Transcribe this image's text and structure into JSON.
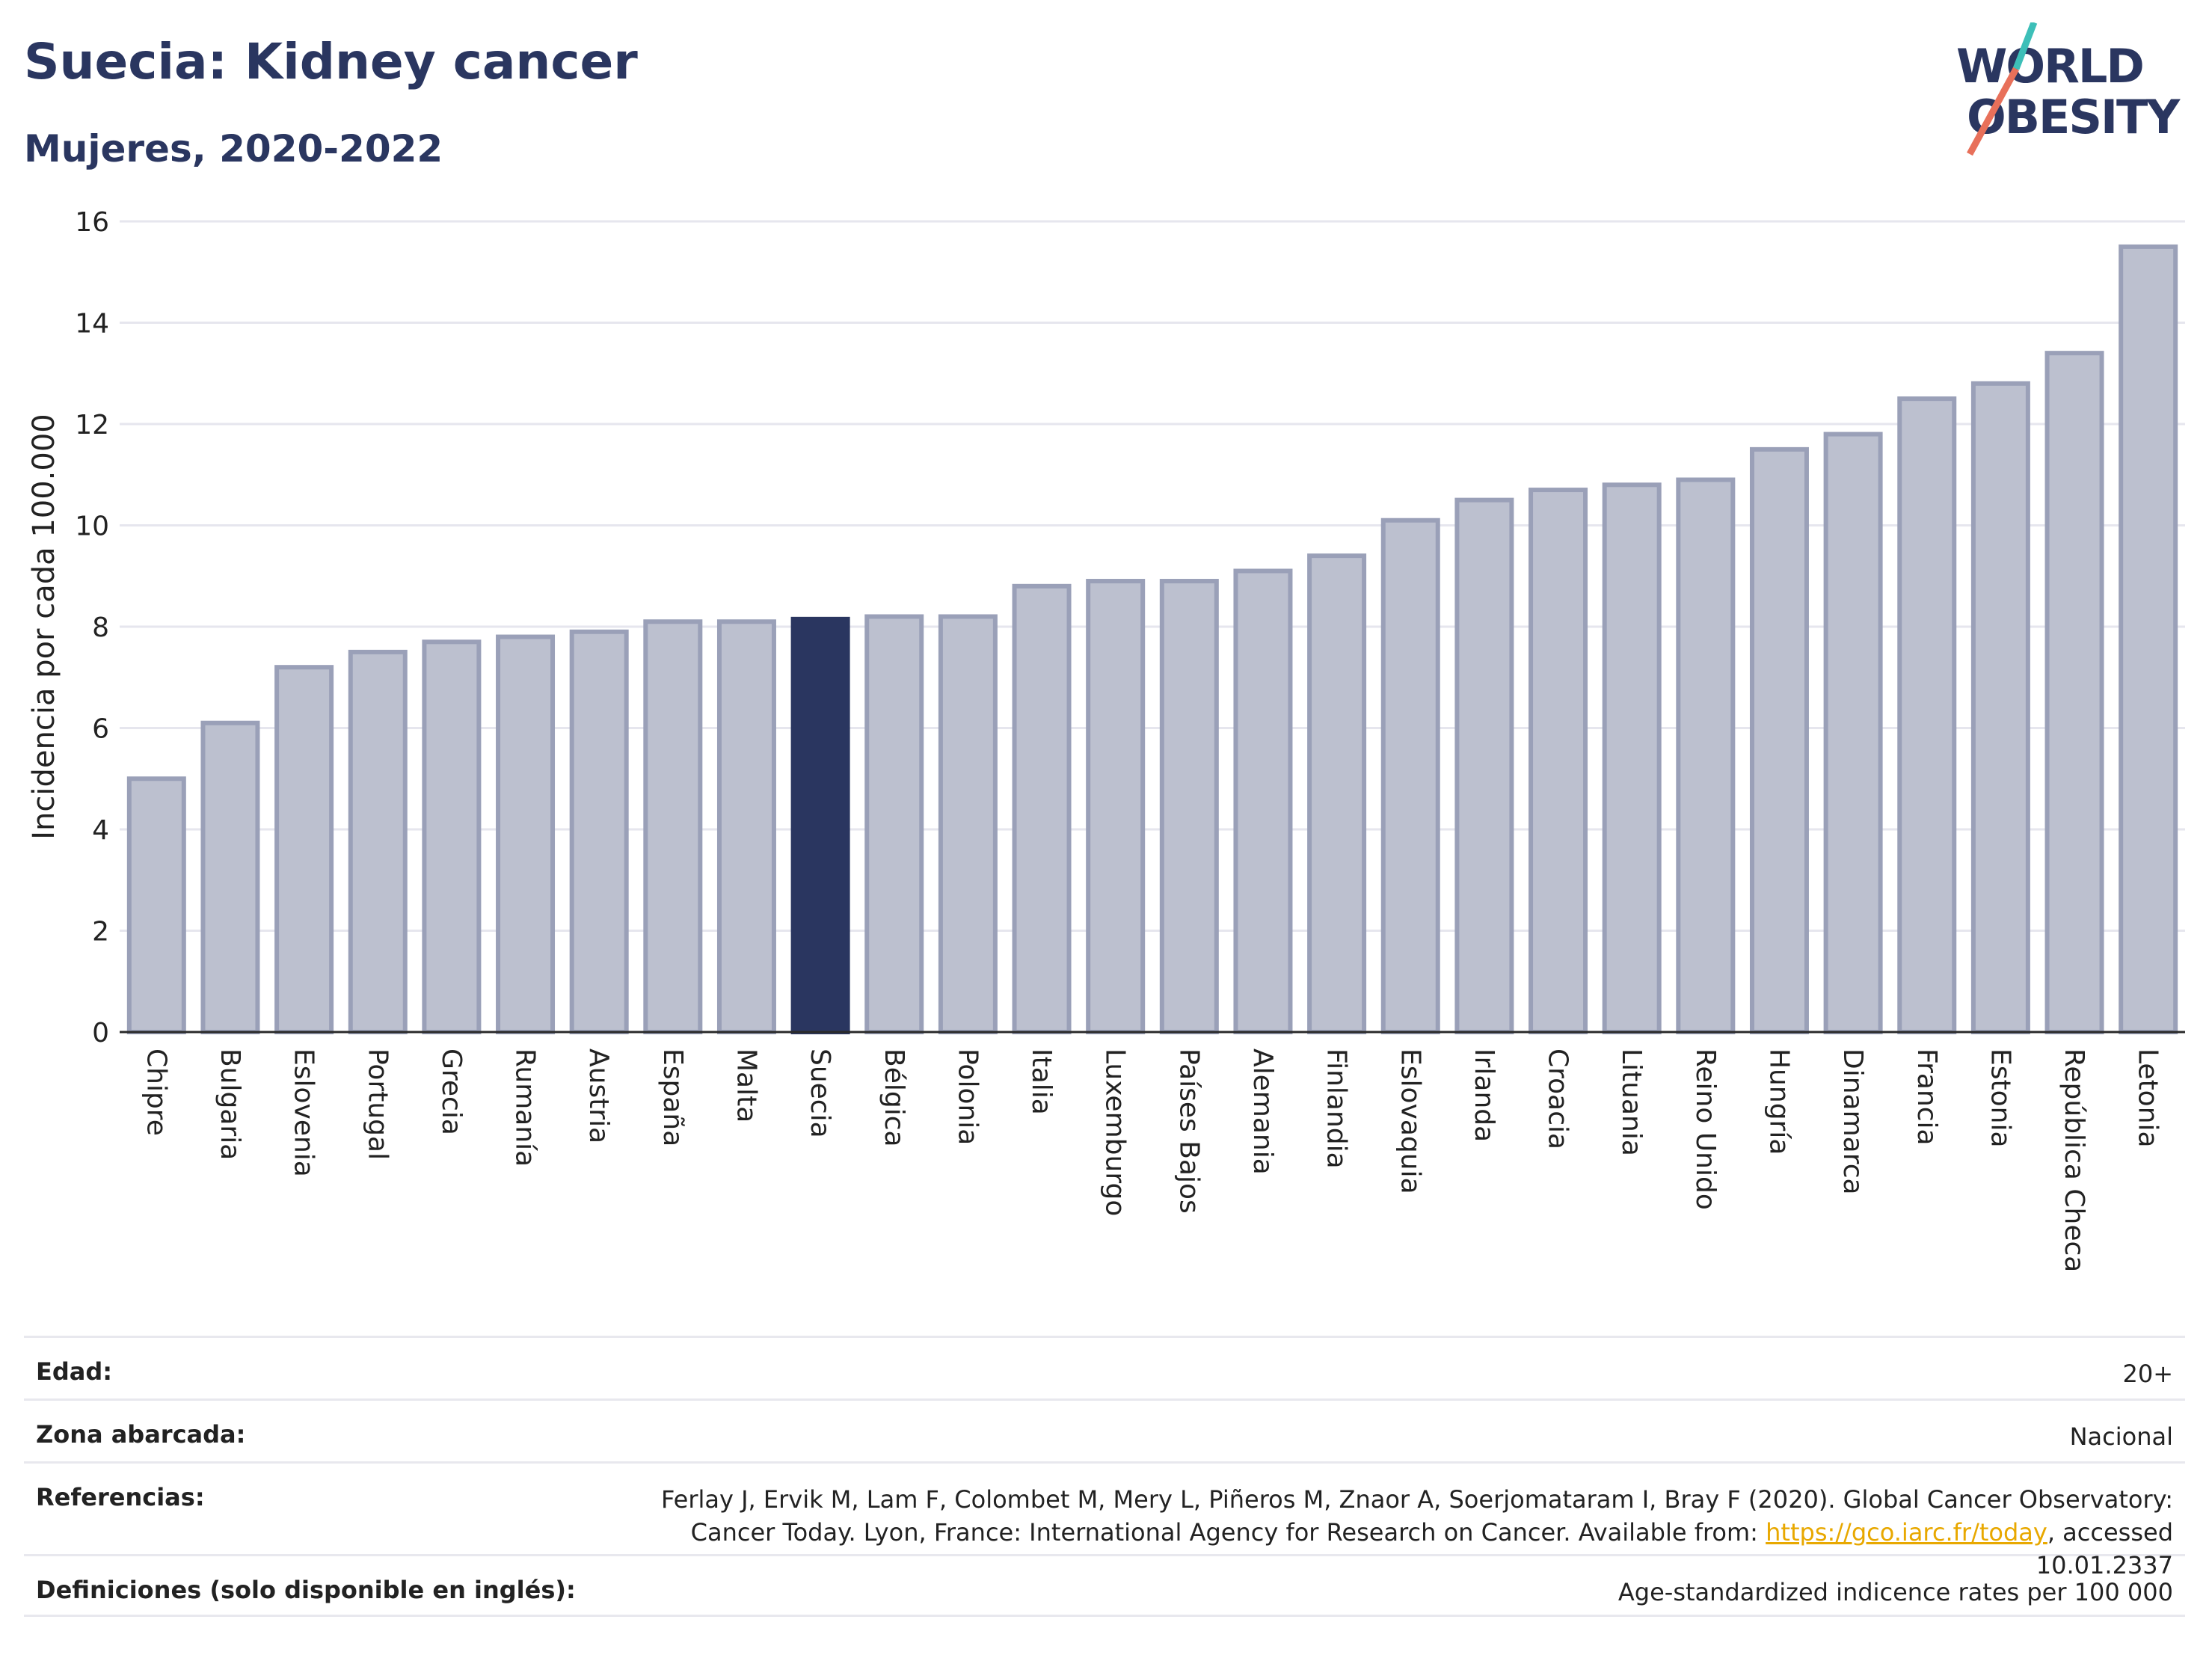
{
  "header": {
    "title": "Suecia: Kidney cancer",
    "subtitle": "Mujeres, 2020-2022"
  },
  "logo": {
    "line1": "WORLD",
    "line2": "OBESITY",
    "accent_teal": "#3dbfb8",
    "accent_red": "#e8705a",
    "text_color": "#2a3660"
  },
  "chart_data": {
    "type": "bar",
    "ylabel": "Incidencia por cada 100.000",
    "ylim": [
      0,
      16
    ],
    "yticks": [
      0,
      2,
      4,
      6,
      8,
      10,
      12,
      14,
      16
    ],
    "grid": true,
    "highlight": "Suecia",
    "colors": {
      "bar": "#bcc0cf",
      "bar_border": "#9aa0b8",
      "highlight": "#2a3660"
    },
    "categories": [
      "Chipre",
      "Bulgaria",
      "Eslovenia",
      "Portugal",
      "Grecia",
      "Rumanía",
      "Austria",
      "España",
      "Malta",
      "Suecia",
      "Bélgica",
      "Polonia",
      "Italia",
      "Luxemburgo",
      "Países Bajos",
      "Alemania",
      "Finlandia",
      "Eslovaquia",
      "Irlanda",
      "Croacia",
      "Lituania",
      "Reino Unido",
      "Hungría",
      "Dinamarca",
      "Francia",
      "Estonia",
      "República Checa",
      "Letonia"
    ],
    "values": [
      5.0,
      6.1,
      7.2,
      7.5,
      7.7,
      7.8,
      7.9,
      8.1,
      8.1,
      8.15,
      8.2,
      8.2,
      8.8,
      8.9,
      8.9,
      9.1,
      9.4,
      10.1,
      10.5,
      10.7,
      10.8,
      10.9,
      11.5,
      11.8,
      12.5,
      12.8,
      13.4,
      15.5
    ]
  },
  "meta": [
    {
      "label": "Edad:",
      "value": "20+"
    },
    {
      "label": "Zona abarcada:",
      "value": "Nacional"
    },
    {
      "label": "Referencias:",
      "value_pre": "Ferlay J, Ervik M, Lam F, Colombet M, Mery L, Piñeros M, Znaor A, Soerjomataram I, Bray F (2020). Global Cancer Observatory: Cancer Today. Lyon, France: International Agency for Research on Cancer. Available from: ",
      "link": "https://gco.iarc.fr/today",
      "value_post": ", accessed 10.01.2337"
    },
    {
      "label": "Definiciones (solo disponible en inglés):",
      "value": "Age-standardized indicence rates per 100 000"
    }
  ]
}
